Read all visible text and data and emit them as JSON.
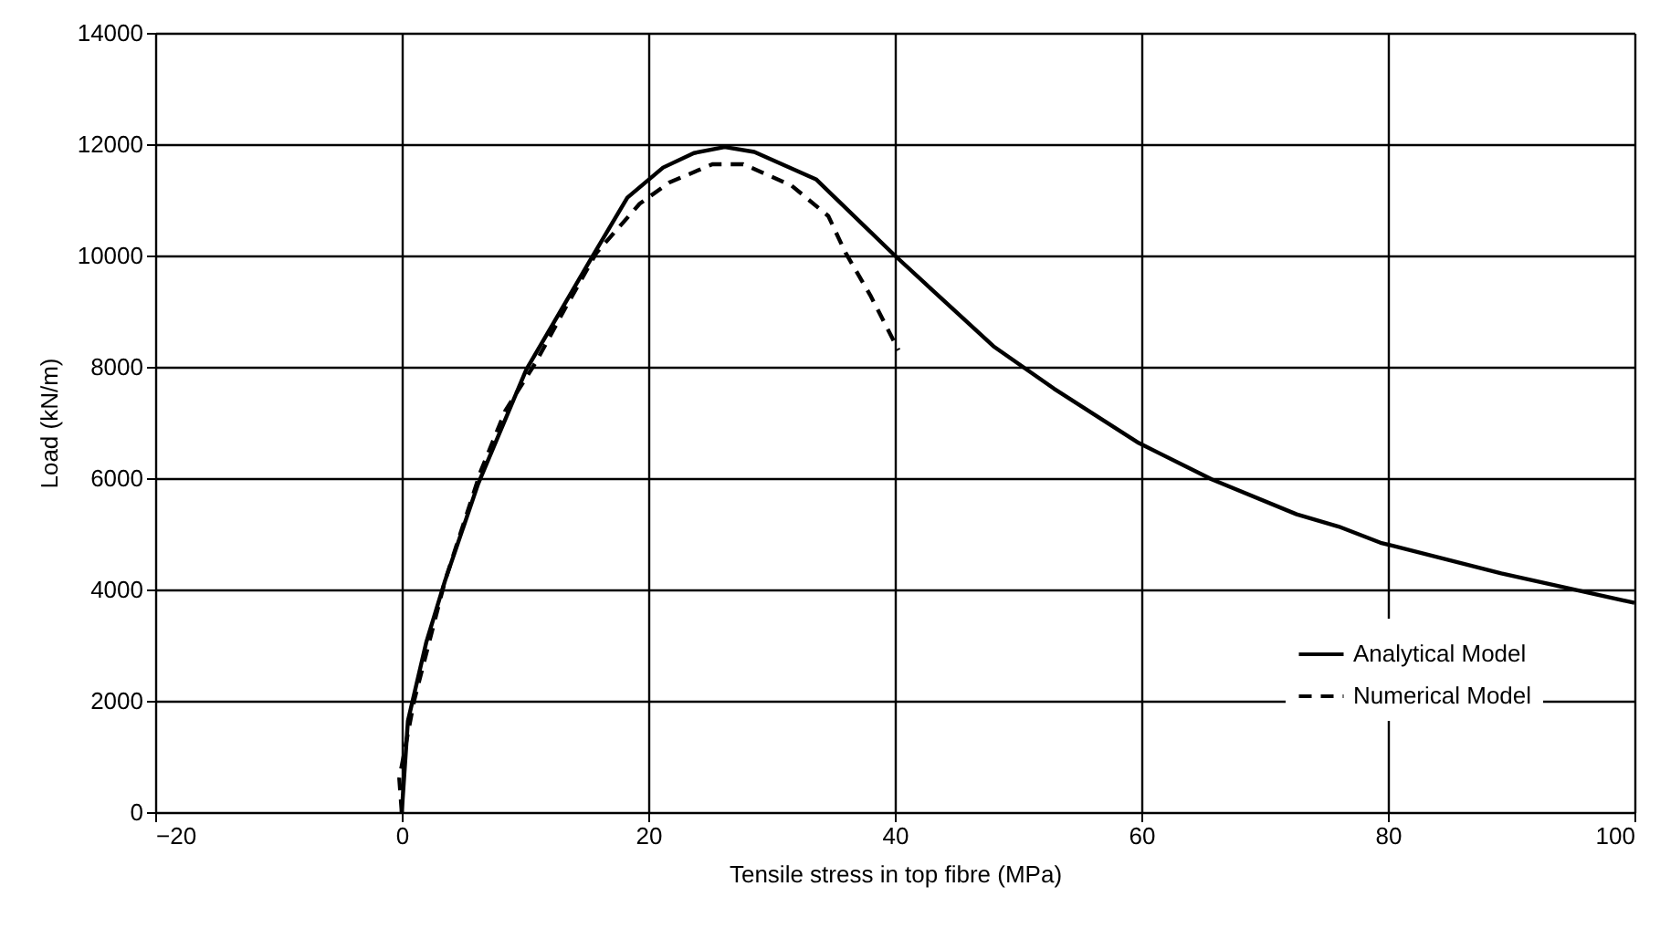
{
  "chart_data": {
    "type": "line",
    "xlabel": "Tensile  stress in top fibre (MPa)",
    "ylabel": "Load (kN/m)",
    "xlim": [
      -20,
      100
    ],
    "ylim": [
      0,
      14000
    ],
    "xticks": [
      -20,
      0,
      20,
      40,
      60,
      80,
      100
    ],
    "yticks": [
      0,
      2000,
      4000,
      6000,
      8000,
      10000,
      12000,
      14000
    ],
    "grid": true,
    "legend": "bottom right",
    "marker": "none",
    "series": [
      {
        "name": "Analytical Model",
        "color": "#000000",
        "line_style": "solid",
        "x": [
          0,
          0.5,
          2,
          3.5,
          6.2,
          10.1,
          15.3,
          18.3,
          21.2,
          23.7,
          26.2,
          28.6,
          33.6,
          40,
          48,
          52.9,
          59.8,
          65.7,
          72.6,
          76,
          79.4,
          89.2,
          100
        ],
        "values": [
          0,
          1640,
          3060,
          4150,
          5900,
          7950,
          9920,
          11040,
          11580,
          11840,
          11950,
          11860,
          11370,
          10000,
          8370,
          7610,
          6630,
          5980,
          5350,
          5130,
          4840,
          4290,
          3760
        ]
      },
      {
        "name": "Numerical Model",
        "color": "#000000",
        "line_style": "dashed",
        "x": [
          0,
          -0.2,
          1,
          3.5,
          6.4,
          8.4,
          10.9,
          13.3,
          15.8,
          19.3,
          21.7,
          25.2,
          27.7,
          31.6,
          34.6,
          36,
          38,
          40.3
        ],
        "values": [
          0,
          600,
          2000,
          4150,
          6120,
          7210,
          8090,
          9070,
          10050,
          10930,
          11310,
          11640,
          11640,
          11260,
          10710,
          10050,
          9290,
          8300
        ]
      }
    ]
  }
}
